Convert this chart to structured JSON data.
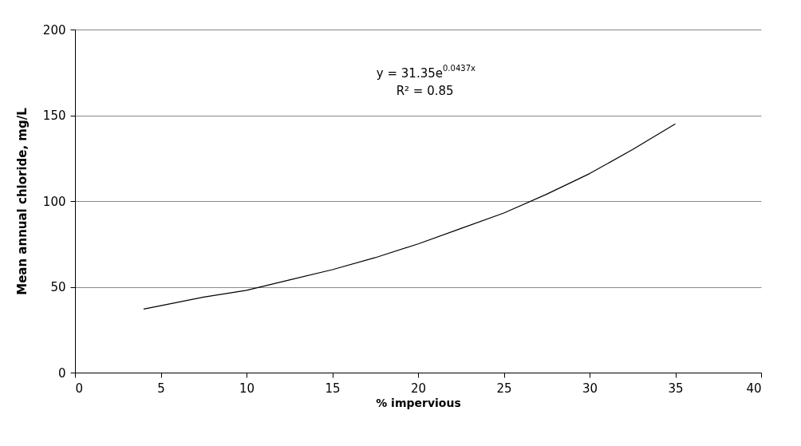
{
  "chart_data": {
    "type": "line",
    "xlabel": "% impervious",
    "ylabel": "Mean annual chloride, mg/L",
    "series": [
      {
        "color": "#000000",
        "x": [
          4,
          5,
          7.5,
          10,
          12.5,
          15,
          17.5,
          20,
          22.5,
          25,
          27.5,
          30,
          32.5,
          35
        ],
        "values": [
          37,
          39,
          44,
          48,
          54,
          60,
          67,
          75,
          84,
          93,
          104,
          116,
          130,
          145
        ]
      }
    ],
    "xlim": [
      0,
      40
    ],
    "xticks": [
      0,
      5,
      10,
      15,
      20,
      25,
      30,
      35,
      40
    ],
    "ylim": [
      0,
      200
    ],
    "yticks": [
      0,
      50,
      100,
      150,
      200
    ],
    "grid": "y",
    "marker": "none",
    "line_style": "solid",
    "annotations": [
      "y = 31.35e$^{0.0437x}$",
      "R² = 0.85"
    ]
  }
}
